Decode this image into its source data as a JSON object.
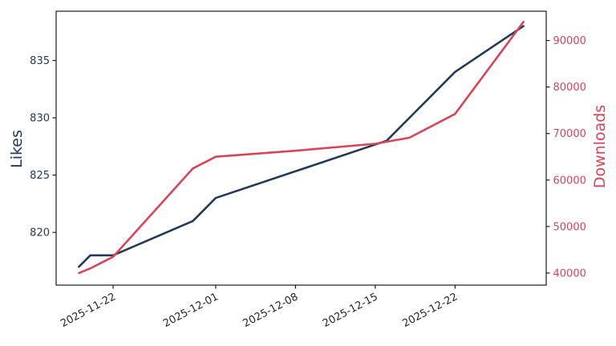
{
  "figure": {
    "background": "#ffffff",
    "text_color": "#262626"
  },
  "chart_data": {
    "type": "line",
    "title": "",
    "grid": false,
    "legend": null,
    "x": {
      "label": "",
      "start_date": "2025-11-19",
      "end_date": "2025-12-28",
      "tick_labels": [
        "2025-11-22",
        "2025-12-01",
        "2025-12-08",
        "2025-12-15",
        "2025-12-22"
      ],
      "range_days": [
        -2,
        41
      ],
      "tick_rotation_deg": 28
    },
    "y_left": {
      "label": "Likes",
      "color": "#233a57",
      "ticks": [
        820,
        825,
        830,
        835
      ],
      "range": [
        815.4,
        839.3
      ]
    },
    "y_right": {
      "label": "Downloads",
      "color": "#d7455a",
      "ticks": [
        40000,
        50000,
        60000,
        70000,
        80000,
        90000
      ],
      "range": [
        37400,
        96300
      ]
    },
    "series": [
      {
        "name": "Likes",
        "axis": "left",
        "color": "#233a57",
        "points": [
          {
            "date": "2025-11-19",
            "value": 817
          },
          {
            "date": "2025-11-20",
            "value": 818
          },
          {
            "date": "2025-11-22",
            "value": 818
          },
          {
            "date": "2025-11-29",
            "value": 821
          },
          {
            "date": "2025-12-01",
            "value": 823
          },
          {
            "date": "2025-12-16",
            "value": 828
          },
          {
            "date": "2025-12-22",
            "value": 834
          },
          {
            "date": "2025-12-28",
            "value": 838
          }
        ]
      },
      {
        "name": "Downloads",
        "axis": "right",
        "color": "#d7455a",
        "points": [
          {
            "date": "2025-11-19",
            "value": 40000
          },
          {
            "date": "2025-11-20",
            "value": 41000
          },
          {
            "date": "2025-11-22",
            "value": 43500
          },
          {
            "date": "2025-11-29",
            "value": 62500
          },
          {
            "date": "2025-12-01",
            "value": 65000
          },
          {
            "date": "2025-12-08",
            "value": 66300
          },
          {
            "date": "2025-12-15",
            "value": 67800
          },
          {
            "date": "2025-12-18",
            "value": 69100
          },
          {
            "date": "2025-12-22",
            "value": 74200
          },
          {
            "date": "2025-12-28",
            "value": 94000
          }
        ]
      }
    ]
  }
}
